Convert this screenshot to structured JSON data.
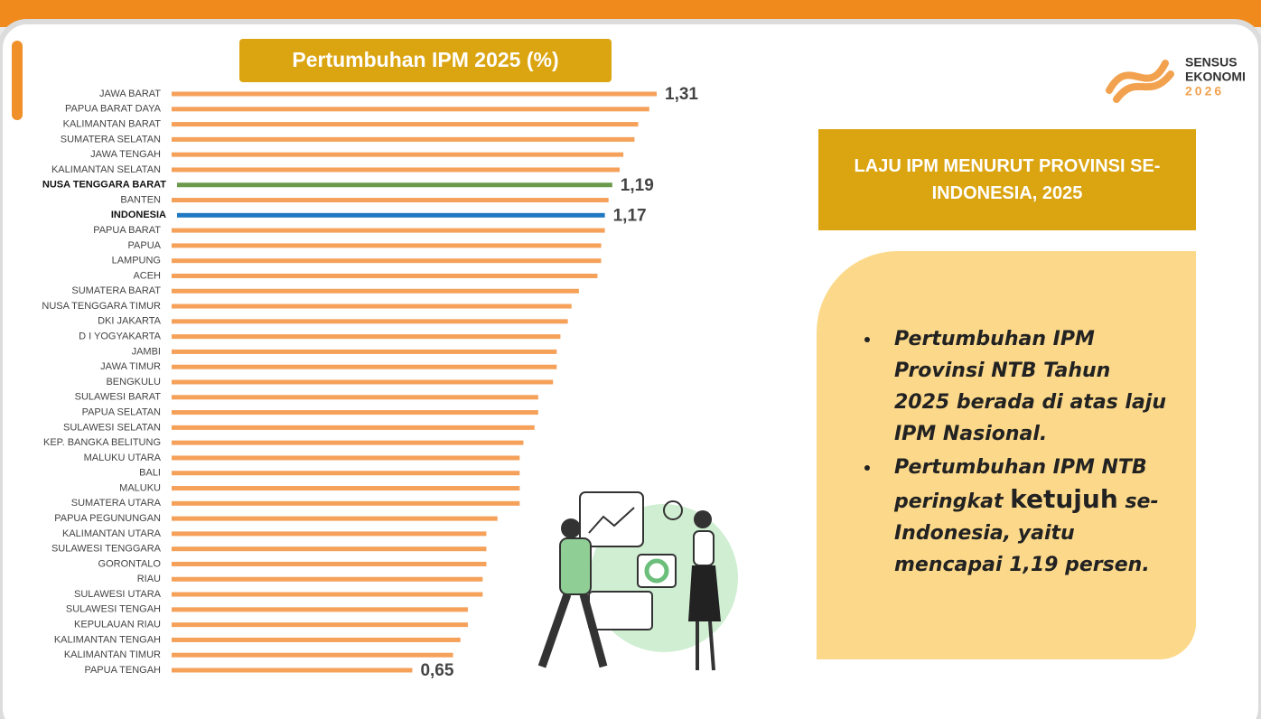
{
  "chart_data": {
    "type": "bar",
    "orientation": "horizontal",
    "title": "Pertumbuhan IPM 2025 (%)",
    "categories": [
      "JAWA BARAT",
      "PAPUA BARAT DAYA",
      "KALIMANTAN BARAT",
      "SUMATERA SELATAN",
      "JAWA TENGAH",
      "KALIMANTAN SELATAN",
      "NUSA TENGGARA BARAT",
      "BANTEN",
      "INDONESIA",
      "PAPUA BARAT",
      "PAPUA",
      "LAMPUNG",
      "ACEH",
      "SUMATERA BARAT",
      "NUSA TENGGARA TIMUR",
      "DKI JAKARTA",
      "D I YOGYAKARTA",
      "JAMBI",
      "JAWA TIMUR",
      "BENGKULU",
      "SULAWESI BARAT",
      "PAPUA SELATAN",
      "SULAWESI SELATAN",
      "KEP. BANGKA BELITUNG",
      "MALUKU UTARA",
      "BALI",
      "MALUKU",
      "SUMATERA UTARA",
      "PAPUA PEGUNUNGAN",
      "KALIMANTAN UTARA",
      "SULAWESI TENGGARA",
      "GORONTALO",
      "RIAU",
      "SULAWESI UTARA",
      "SULAWESI TENGAH",
      "KEPULAUAN RIAU",
      "KALIMANTAN TENGAH",
      "KALIMANTAN TIMUR",
      "PAPUA TENGAH"
    ],
    "values": [
      1.31,
      1.29,
      1.26,
      1.25,
      1.22,
      1.21,
      1.19,
      1.18,
      1.17,
      1.17,
      1.16,
      1.16,
      1.15,
      1.1,
      1.08,
      1.07,
      1.05,
      1.04,
      1.04,
      1.03,
      0.99,
      0.99,
      0.98,
      0.95,
      0.94,
      0.94,
      0.94,
      0.94,
      0.88,
      0.85,
      0.85,
      0.85,
      0.84,
      0.84,
      0.8,
      0.8,
      0.78,
      0.76,
      0.65
    ],
    "value_labels": [
      "1,31",
      null,
      null,
      null,
      null,
      null,
      "1,19",
      null,
      "1,17",
      null,
      null,
      null,
      null,
      null,
      null,
      null,
      null,
      null,
      null,
      null,
      null,
      null,
      null,
      null,
      null,
      null,
      null,
      null,
      null,
      null,
      null,
      null,
      null,
      null,
      null,
      null,
      null,
      null,
      "0,65"
    ],
    "colors": [
      "#f5a15a",
      "#f5a15a",
      "#f5a15a",
      "#f5a15a",
      "#f5a15a",
      "#f5a15a",
      "#6b9a4c",
      "#f5a15a",
      "#1f78c1",
      "#f5a15a",
      "#f5a15a",
      "#f5a15a",
      "#f5a15a",
      "#f5a15a",
      "#f5a15a",
      "#f5a15a",
      "#f5a15a",
      "#f5a15a",
      "#f5a15a",
      "#f5a15a",
      "#f5a15a",
      "#f5a15a",
      "#f5a15a",
      "#f5a15a",
      "#f5a15a",
      "#f5a15a",
      "#f5a15a",
      "#f5a15a",
      "#f5a15a",
      "#f5a15a",
      "#f5a15a",
      "#f5a15a",
      "#f5a15a",
      "#f5a15a",
      "#f5a15a",
      "#f5a15a",
      "#f5a15a",
      "#f5a15a",
      "#f5a15a"
    ]
  },
  "logo": [
    "SENSUS",
    "EKONOMI",
    "2026"
  ],
  "panel": {
    "title": "LAJU IPM MENURUT PROVINSI SE-INDONESIA, 2025",
    "bullets": [
      [
        "Pertumbuhan IPM Provinsi NTB Tahun 2025 berada di atas laju IPM Nasional."
      ],
      [
        "Pertumbuhan IPM NTB peringkat ",
        "ketujuh",
        " se-Indonesia, yaitu mencapai 1,19 persen."
      ]
    ]
  }
}
